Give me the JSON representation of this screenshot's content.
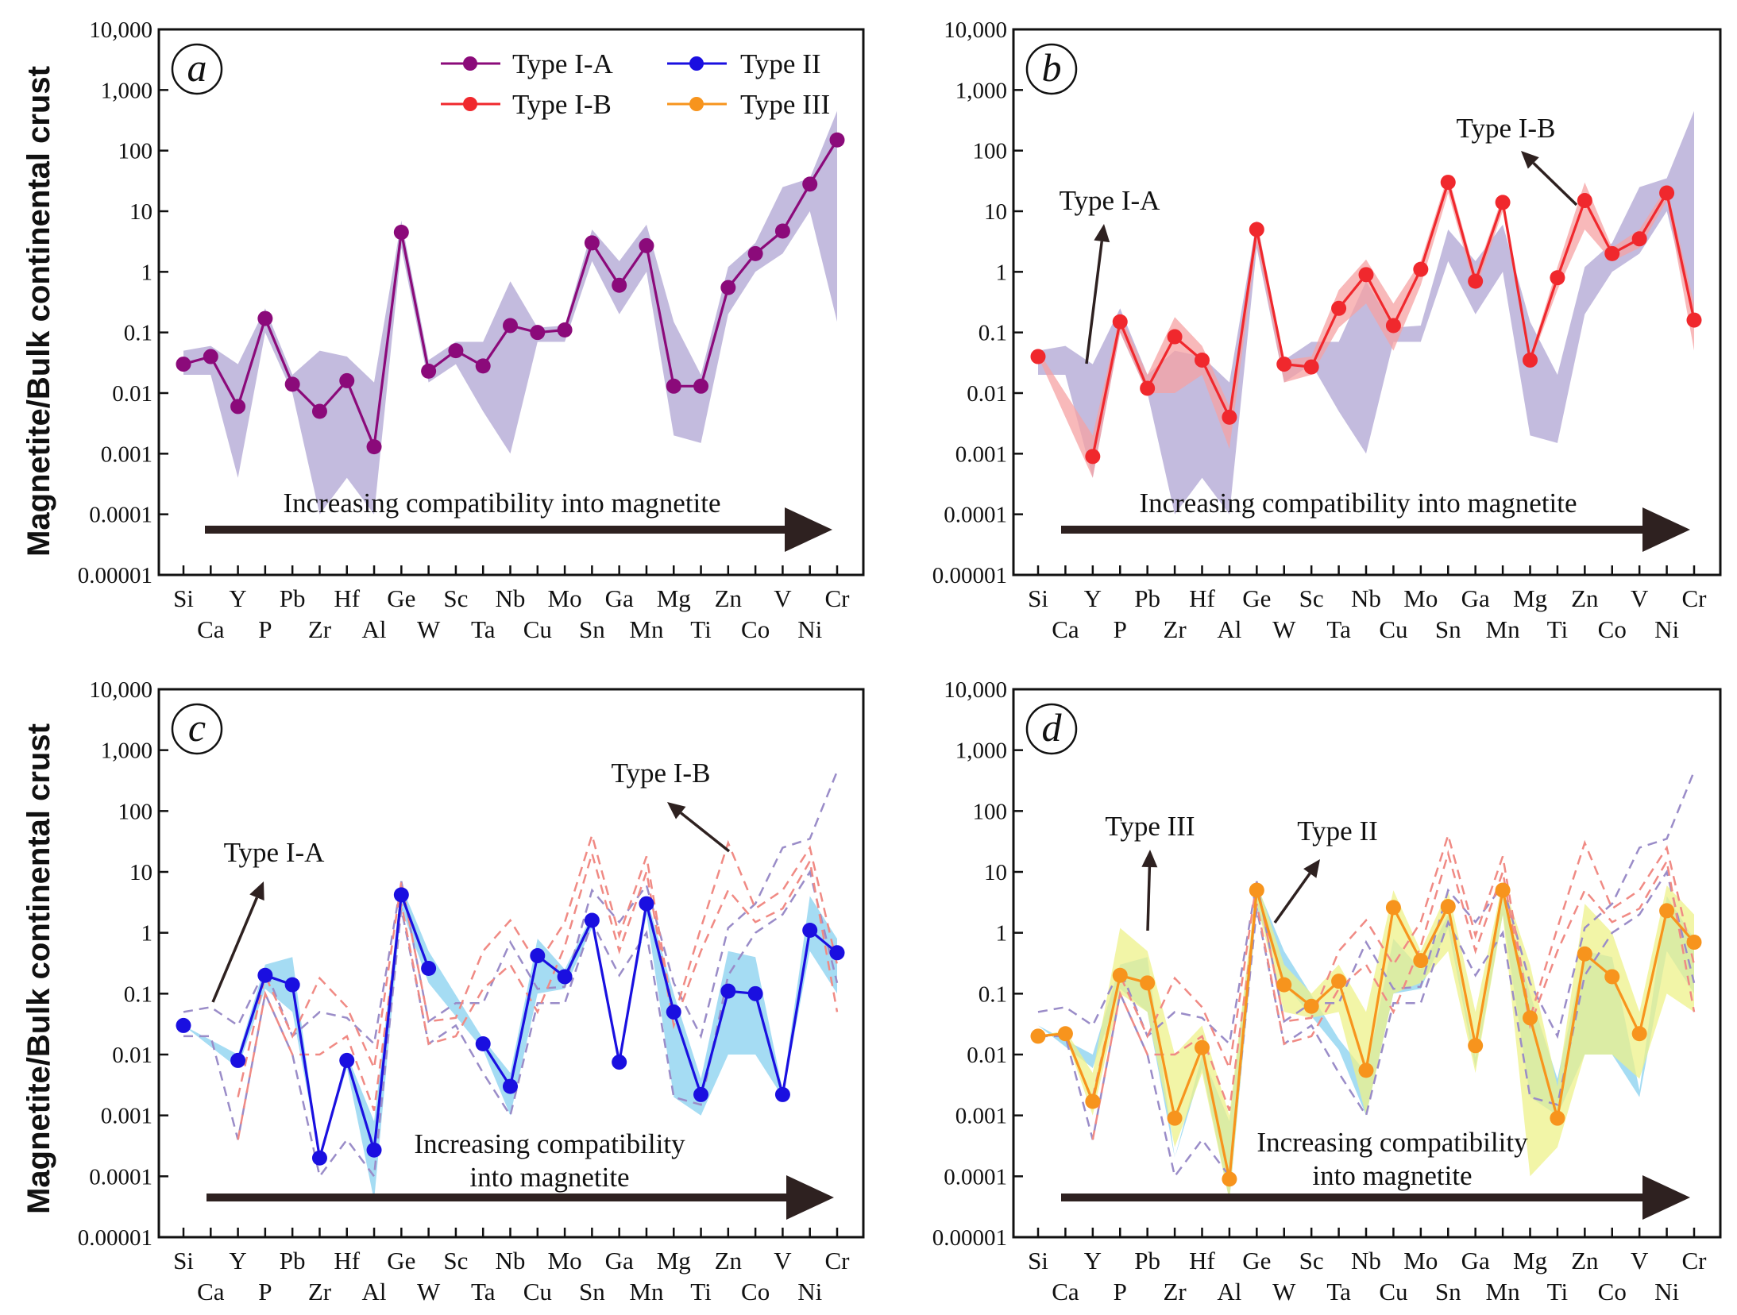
{
  "figure": {
    "ylabel": "Magnetite/Bulk continental crust",
    "yticks": [
      {
        "v": 10000,
        "label": "10,000"
      },
      {
        "v": 1000,
        "label": "1,000"
      },
      {
        "v": 100,
        "label": "100"
      },
      {
        "v": 10,
        "label": "10"
      },
      {
        "v": 1,
        "label": "1"
      },
      {
        "v": 0.1,
        "label": "0.1"
      },
      {
        "v": 0.01,
        "label": "0.01"
      },
      {
        "v": 0.001,
        "label": "0.001"
      },
      {
        "v": 0.0001,
        "label": "0.0001"
      },
      {
        "v": 1e-05,
        "label": "0.00001"
      }
    ],
    "legend": [
      {
        "name": "Type I-A",
        "color": "#8B0A7A"
      },
      {
        "name": "Type II",
        "color": "#1A0FE0"
      },
      {
        "name": "Type I-B",
        "color": "#F0282D"
      },
      {
        "name": "Type III",
        "color": "#F7941D"
      }
    ],
    "colors": {
      "typeIA": "#8B0A7A",
      "typeIB": "#F0282D",
      "typeII": "#1A0FE0",
      "typeIII": "#F7941D",
      "bandIA": "#B9AFD8",
      "bandIB": "#F6A1A3",
      "bandII": "#8ED3F0",
      "bandIII": "#EEF28A",
      "dashIA": "#9A8CC8",
      "dashIB": "#F08A84",
      "arrow": "#2E2120"
    }
  },
  "chart_data": [
    {
      "type": "line",
      "panel": "a",
      "yscale": "log",
      "ylim": [
        1e-05,
        10000
      ],
      "categories": [
        "Si",
        "Ca",
        "Y",
        "P",
        "Pb",
        "Zr",
        "Hf",
        "Al",
        "Ge",
        "W",
        "Sc",
        "Ta",
        "Nb",
        "Cu",
        "Mo",
        "Sn",
        "Ga",
        "Mn",
        "Mg",
        "Ti",
        "Zn",
        "Co",
        "V",
        "Ni",
        "Cr"
      ],
      "series": [
        {
          "name": "Type I-A",
          "values": [
            0.03,
            0.04,
            0.006,
            0.17,
            0.014,
            0.005,
            0.016,
            0.0013,
            4.5,
            0.023,
            0.05,
            0.028,
            0.13,
            0.1,
            0.11,
            3.0,
            0.6,
            2.7,
            0.013,
            0.013,
            0.55,
            2.0,
            4.7,
            28,
            150
          ],
          "range_low": [
            0.02,
            0.02,
            0.0004,
            0.1,
            0.01,
            0.0001,
            0.0004,
            0.0001,
            2.5,
            0.015,
            0.03,
            0.005,
            0.001,
            0.07,
            0.07,
            1.5,
            0.2,
            1.0,
            0.002,
            0.0015,
            0.2,
            1.0,
            2.0,
            10,
            0.15
          ],
          "range_high": [
            0.05,
            0.06,
            0.03,
            0.25,
            0.02,
            0.05,
            0.04,
            0.015,
            7,
            0.035,
            0.07,
            0.07,
            0.7,
            0.12,
            0.13,
            5,
            1.5,
            6,
            0.15,
            0.02,
            1.2,
            3,
            25,
            35,
            450
          ]
        }
      ],
      "annotation": "Increasing compatibility into magnetite"
    },
    {
      "type": "line",
      "panel": "b",
      "yscale": "log",
      "ylim": [
        1e-05,
        10000
      ],
      "categories": [
        "Si",
        "Ca",
        "Y",
        "P",
        "Pb",
        "Zr",
        "Hf",
        "Al",
        "Ge",
        "W",
        "Sc",
        "Ta",
        "Nb",
        "Cu",
        "Mo",
        "Sn",
        "Ga",
        "Mn",
        "Mg",
        "Ti",
        "Zn",
        "Co",
        "V",
        "Ni",
        "Cr"
      ],
      "series": [
        {
          "name": "Type I-B",
          "values": [
            0.04,
            null,
            0.0009,
            0.15,
            0.012,
            0.085,
            0.035,
            0.004,
            5.0,
            0.03,
            0.027,
            0.25,
            0.9,
            0.13,
            1.1,
            30,
            0.7,
            14,
            0.035,
            0.8,
            15,
            2.0,
            3.5,
            20,
            0.16
          ],
          "range_low": [
            0.04,
            null,
            0.0004,
            0.1,
            0.01,
            0.01,
            0.02,
            0.0012,
            3,
            0.015,
            0.02,
            0.12,
            0.3,
            0.05,
            0.6,
            20,
            0.5,
            10,
            0.03,
            0.5,
            5,
            1.5,
            2.5,
            15,
            0.05
          ],
          "range_high": [
            0.05,
            null,
            0.002,
            0.2,
            0.02,
            0.18,
            0.06,
            0.006,
            7,
            0.035,
            0.04,
            0.5,
            1.6,
            0.3,
            1.5,
            40,
            0.9,
            18,
            0.04,
            1.2,
            30,
            2.5,
            5,
            25,
            0.3
          ]
        }
      ],
      "annotations": [
        "Type I-A",
        "Type I-B",
        "Increasing compatibility into magnetite"
      ]
    },
    {
      "type": "line",
      "panel": "c",
      "yscale": "log",
      "ylim": [
        1e-05,
        10000
      ],
      "categories": [
        "Si",
        "Ca",
        "Y",
        "P",
        "Pb",
        "Zr",
        "Hf",
        "Al",
        "Ge",
        "W",
        "Sc",
        "Ta",
        "Nb",
        "Cu",
        "Mo",
        "Sn",
        "Ga",
        "Mn",
        "Mg",
        "Ti",
        "Zn",
        "Co",
        "V",
        "Ni",
        "Cr"
      ],
      "series": [
        {
          "name": "Type II",
          "values": [
            0.03,
            null,
            0.008,
            0.2,
            0.14,
            0.0002,
            0.008,
            0.00027,
            4.2,
            0.26,
            null,
            0.015,
            0.003,
            0.42,
            0.19,
            1.6,
            0.0075,
            3.0,
            0.05,
            0.0022,
            0.11,
            0.1,
            0.0022,
            1.1,
            0.47
          ],
          "range_low": [
            0.03,
            null,
            0.006,
            0.12,
            0.05,
            0.0002,
            0.006,
            4e-05,
            2.5,
            0.15,
            null,
            0.012,
            0.001,
            0.1,
            0.12,
            1.2,
            0.006,
            2.0,
            0.002,
            0.001,
            0.01,
            0.01,
            0.002,
            0.5,
            0.1
          ],
          "range_high": [
            0.03,
            null,
            0.01,
            0.3,
            0.4,
            0.0002,
            0.01,
            0.0008,
            6,
            0.5,
            null,
            0.018,
            0.005,
            0.8,
            0.25,
            2.0,
            0.009,
            4.0,
            0.1,
            0.004,
            0.5,
            0.4,
            0.0026,
            4,
            0.8
          ]
        }
      ],
      "annotations": [
        "Type I-A",
        "Type I-B",
        "Increasing compatibility",
        "into magnetite"
      ]
    },
    {
      "type": "line",
      "panel": "d",
      "yscale": "log",
      "ylim": [
        1e-05,
        10000
      ],
      "categories": [
        "Si",
        "Ca",
        "Y",
        "P",
        "Pb",
        "Zr",
        "Hf",
        "Al",
        "Ge",
        "W",
        "Sc",
        "Ta",
        "Nb",
        "Cu",
        "Mo",
        "Sn",
        "Ga",
        "Mn",
        "Mg",
        "Ti",
        "Zn",
        "Co",
        "V",
        "Ni",
        "Cr"
      ],
      "series": [
        {
          "name": "Type III",
          "values": [
            0.02,
            0.022,
            0.0017,
            0.2,
            0.15,
            0.0009,
            0.013,
            9e-05,
            5.0,
            0.14,
            0.062,
            0.16,
            0.0055,
            2.6,
            0.35,
            2.7,
            0.014,
            5.0,
            0.04,
            0.0009,
            0.45,
            0.19,
            0.022,
            2.3,
            0.7
          ],
          "range_low": [
            0.02,
            0.02,
            0.001,
            0.1,
            0.05,
            0.0003,
            0.005,
            4e-05,
            3,
            0.05,
            0.04,
            0.05,
            0.001,
            0.1,
            0.15,
            0.5,
            0.005,
            2,
            0.0001,
            0.0003,
            0.01,
            0.01,
            0.004,
            0.1,
            0.05
          ],
          "range_high": [
            0.02,
            0.025,
            0.005,
            1.2,
            0.5,
            0.01,
            0.03,
            0.001,
            7,
            0.3,
            0.1,
            0.3,
            0.05,
            5,
            0.5,
            5,
            0.05,
            7,
            0.3,
            0.003,
            3,
            1,
            0.05,
            6,
            2
          ]
        }
      ],
      "annotations": [
        "Type III",
        "Type II",
        "Increasing compatibility",
        "into magnetite"
      ]
    }
  ]
}
